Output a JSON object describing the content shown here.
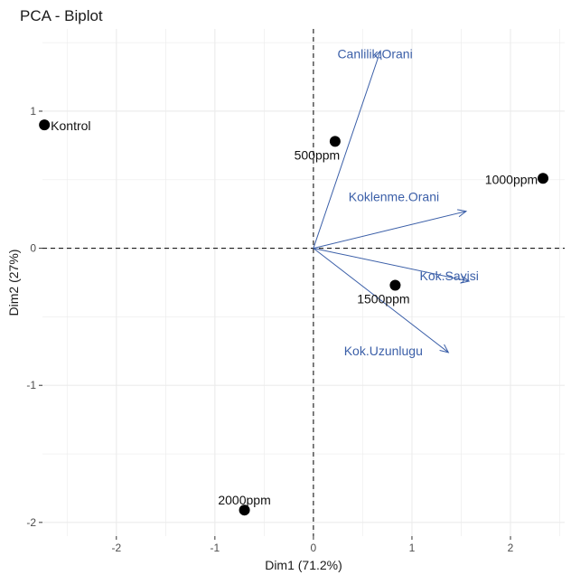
{
  "chart_data": {
    "type": "scatter",
    "title": "PCA - Biplot",
    "xlabel": "Dim1 (71.2%)",
    "ylabel": "Dim2 (27%)",
    "xlim": [
      -2.75,
      2.55
    ],
    "ylim": [
      -2.1,
      1.6
    ],
    "x_ticks": [
      -2,
      -1,
      0,
      1,
      2
    ],
    "y_ticks": [
      -2,
      -1,
      0,
      1
    ],
    "grid": true,
    "reference_lines": {
      "x": 0,
      "y": 0,
      "style": "dashed"
    },
    "colors": {
      "points": "#000000",
      "variables": "#3b5fa8",
      "grid": "#ebebeb"
    },
    "points": [
      {
        "label": "Kontrol",
        "x": -2.73,
        "y": 0.9
      },
      {
        "label": "500ppm",
        "x": 0.22,
        "y": 0.78
      },
      {
        "label": "1000ppm",
        "x": 2.33,
        "y": 0.51
      },
      {
        "label": "1500ppm",
        "x": 0.83,
        "y": -0.27
      },
      {
        "label": "2000ppm",
        "x": -0.7,
        "y": -1.91
      }
    ],
    "variables": [
      {
        "label": "Canlilik.Orani",
        "x": 0.68,
        "y": 1.44
      },
      {
        "label": "Koklenme.Orani",
        "x": 1.55,
        "y": 0.27
      },
      {
        "label": "Kok.Sayisi",
        "x": 1.58,
        "y": -0.24
      },
      {
        "label": "Kok.Uzunlugu",
        "x": 1.37,
        "y": -0.76
      }
    ]
  }
}
